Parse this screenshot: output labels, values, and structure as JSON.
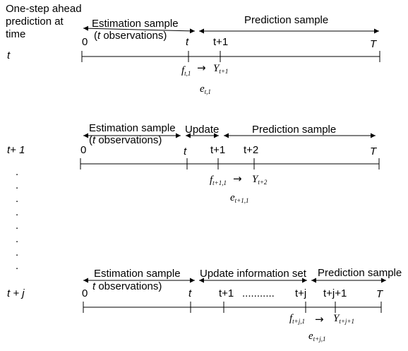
{
  "header": {
    "line1": "One-step ahead",
    "line2": "prediction at",
    "line3": "time"
  },
  "dots": ".",
  "arrow_glyph": "→",
  "row1": {
    "time_label": "t",
    "estimation_label": "Estimation sample",
    "estimation_obs_open": "(",
    "estimation_obs_t": "t",
    "estimation_obs_rest": " observations)",
    "prediction_label": "Prediction sample",
    "tick_0": "0",
    "tick_t": "t",
    "tick_t1": "t+1",
    "tick_T": "T",
    "f_base": "f",
    "f_sub": "t,1",
    "y_base": "Y",
    "y_sub": "t+1",
    "e_base": "e",
    "e_sub": "t,1"
  },
  "row2": {
    "time_label": "t+ 1",
    "estimation_label": "Estimation sample",
    "estimation_obs_open": "(",
    "estimation_obs_t": "t",
    "estimation_obs_rest": " observations)",
    "update_label": "Update",
    "prediction_label": "Prediction sample",
    "tick_0": "0",
    "tick_t": "t",
    "tick_t1": "t+1",
    "tick_t2": "t+2",
    "tick_T": "T",
    "f_base": "f",
    "f_sub": "t+1,1",
    "y_base": "Y",
    "y_sub": "t+2",
    "e_base": "e",
    "e_sub": "t+1,1"
  },
  "row3": {
    "time_label": "t + j",
    "estimation_label": "Estimation sample",
    "estimation_obs_open": "(",
    "estimation_obs_t": "t",
    "estimation_obs_rest": " observations)",
    "update_label": "Update information set",
    "prediction_label": "Prediction sample",
    "tick_0": "0",
    "tick_t": "t",
    "tick_t1": "t+1",
    "tick_dots": "...........",
    "tick_tj": "t+j",
    "tick_tj1": "t+j+1",
    "tick_T": "T",
    "f_base": "f",
    "f_sub": "t+j,1",
    "y_base": "Y",
    "y_sub": "t+j+1",
    "e_base": "e",
    "e_sub": "t+j,1"
  }
}
